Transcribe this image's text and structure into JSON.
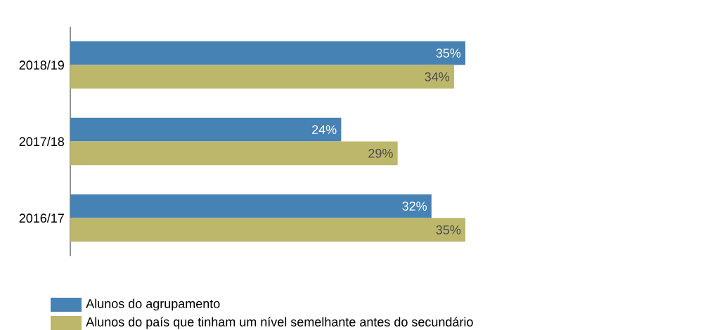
{
  "chart_data": {
    "type": "bar",
    "orientation": "horizontal",
    "categories": [
      "2018/19",
      "2017/18",
      "2016/17"
    ],
    "series": [
      {
        "name": "Alunos do agrupamento",
        "color": "#4682b4",
        "values": [
          35,
          24,
          32
        ],
        "value_labels": [
          "35%",
          "24%",
          "32%"
        ]
      },
      {
        "name": "Alunos do país que tinham um nível semelhante antes do secundário",
        "color": "#bdb76b",
        "values": [
          34,
          29,
          35
        ],
        "value_labels": [
          "34%",
          "29%",
          "35%"
        ]
      }
    ],
    "legend": "bottom left"
  }
}
